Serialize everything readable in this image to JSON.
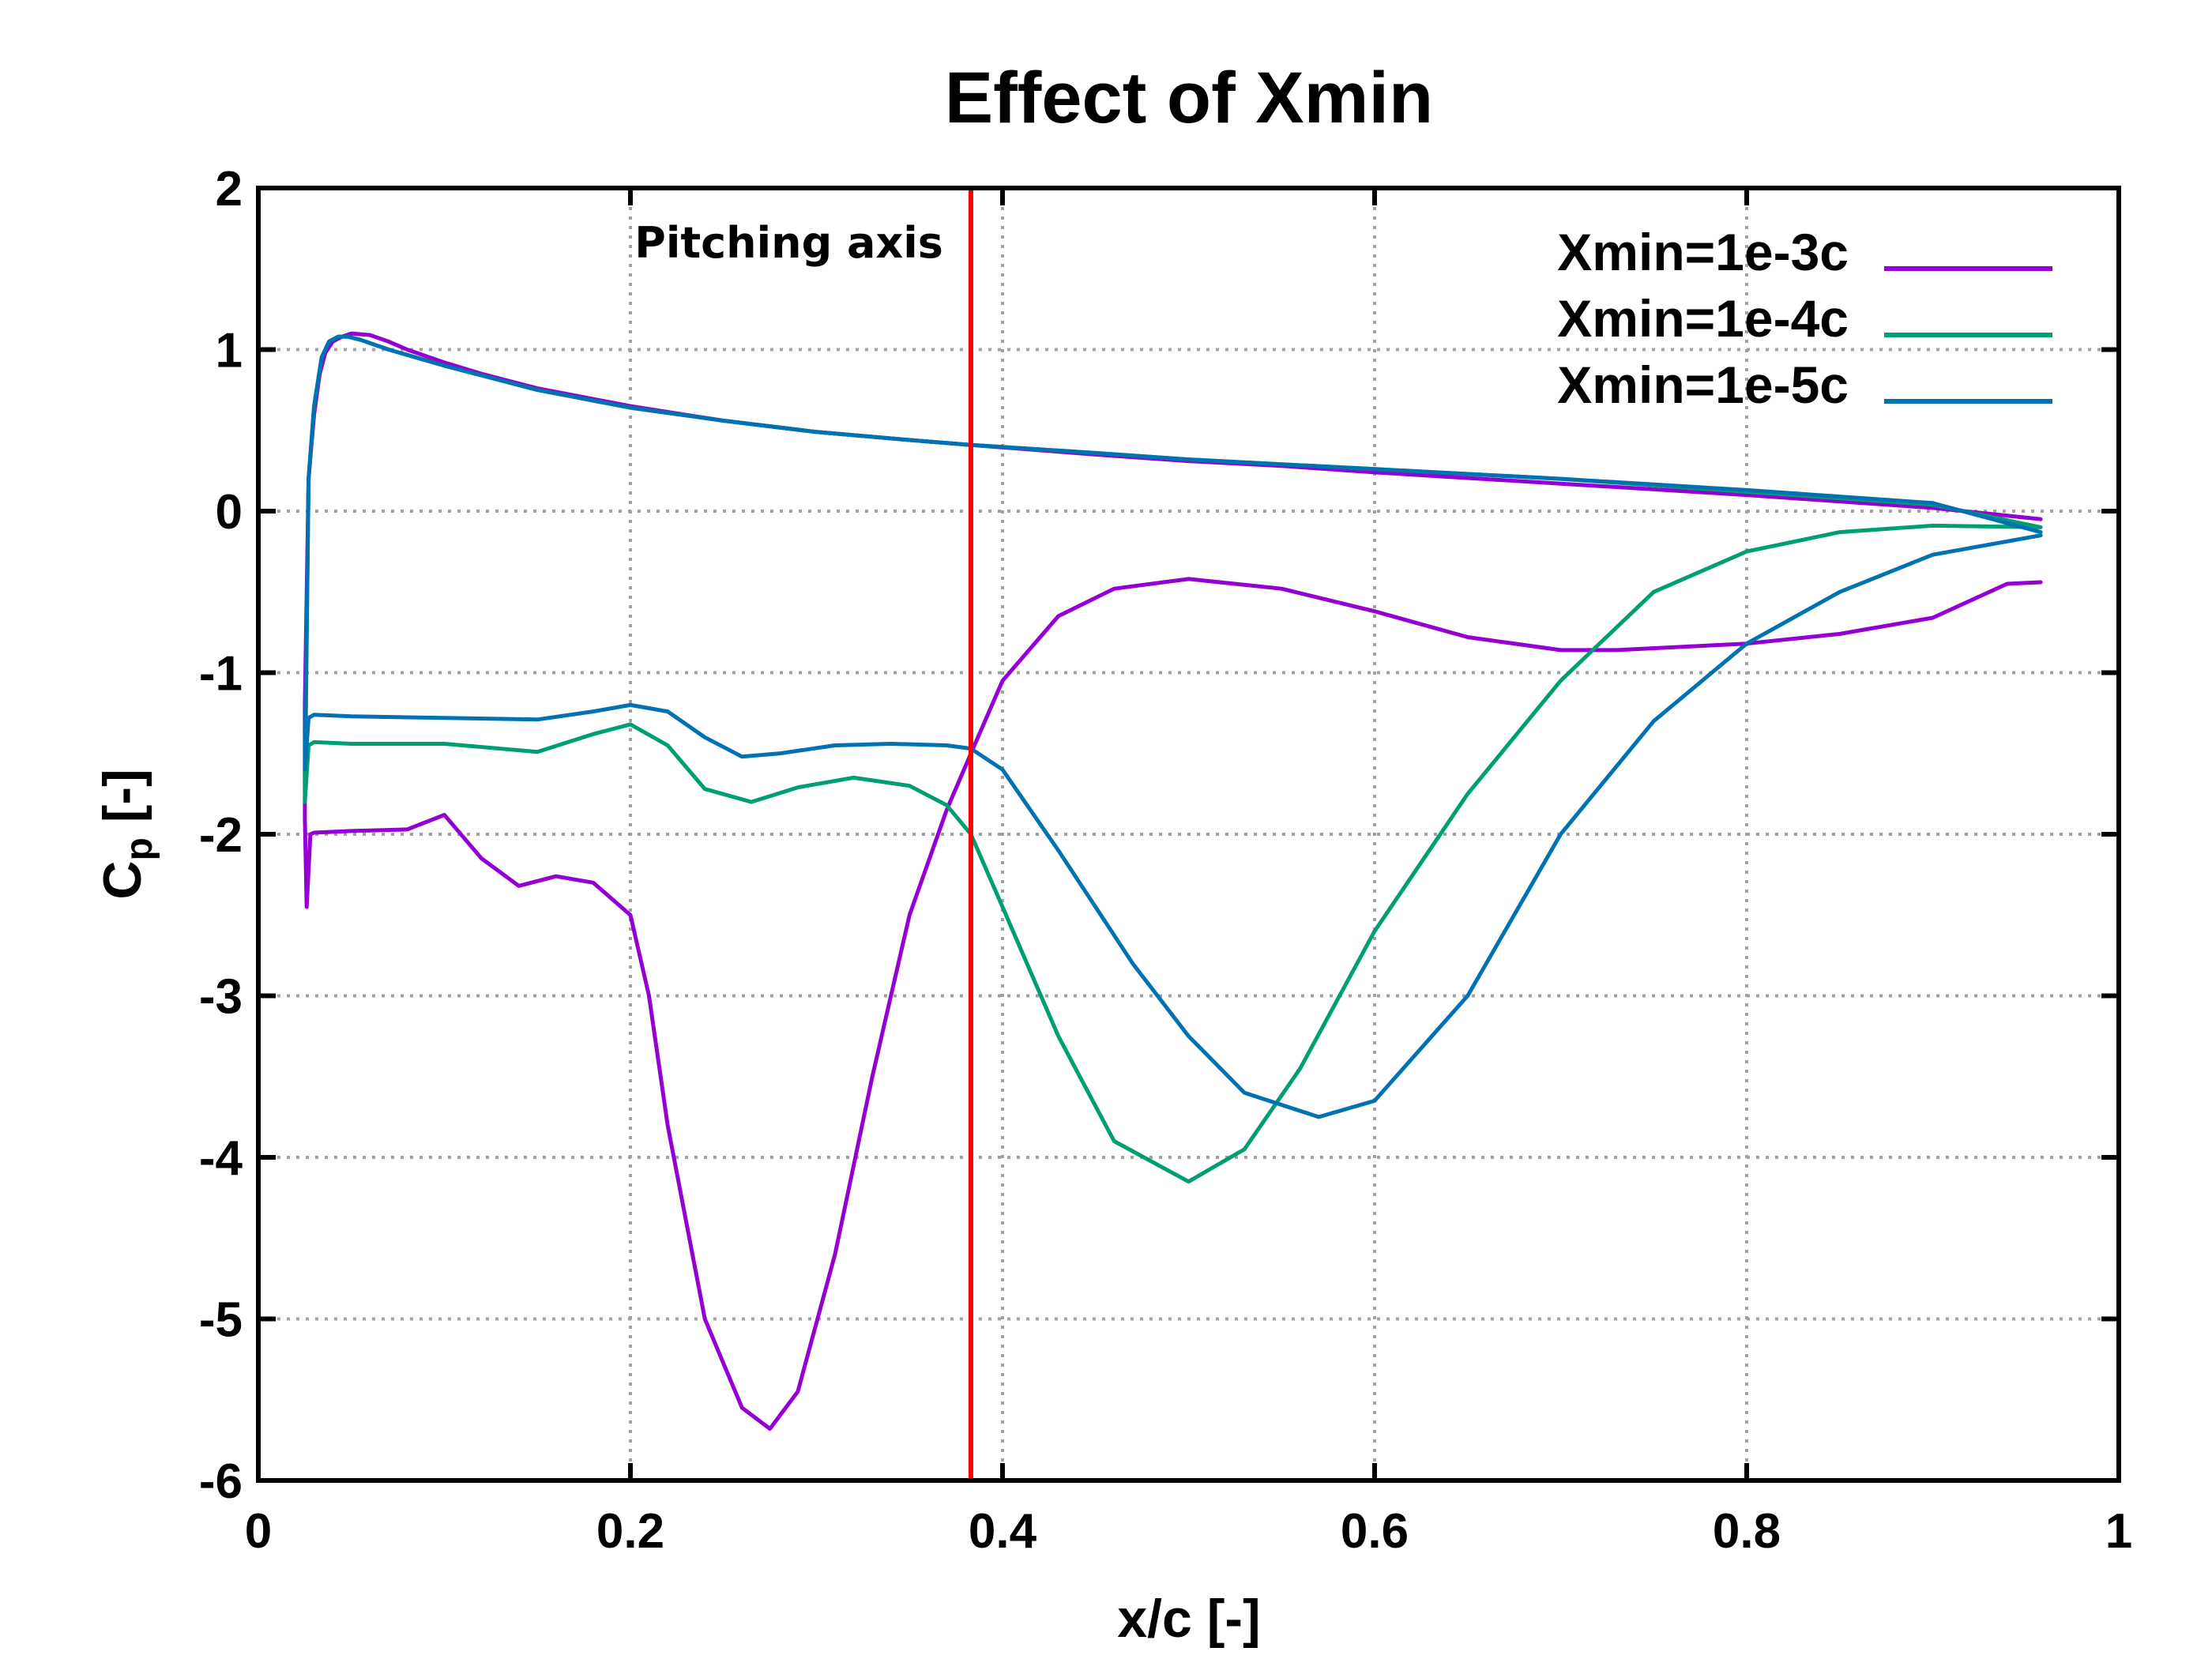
{
  "chart_data": {
    "type": "line",
    "title": "Effect of Xmin",
    "xlabel": "x/c [-]",
    "ylabel": "C",
    "ylabel_subscript": "p",
    "ylabel_suffix": " [-]",
    "xlim": [
      0,
      1
    ],
    "ylim": [
      -6,
      2
    ],
    "xticks": [
      0,
      0.2,
      0.4,
      0.6,
      0.8,
      1
    ],
    "xtick_labels": [
      "0",
      "0.2",
      "0.4",
      "0.6",
      "0.8",
      "1"
    ],
    "yticks": [
      -6,
      -5,
      -4,
      -3,
      -2,
      -1,
      0,
      1,
      2
    ],
    "ytick_labels": [
      "-6",
      "-5",
      "-4",
      "-3",
      "-2",
      "-1",
      "0",
      "1",
      "2"
    ],
    "grid": true,
    "legend_position": "top-right",
    "annotation": {
      "text": "Pitching axis",
      "x": 0.383,
      "color": "#ff0000"
    },
    "series": [
      {
        "name": "Xmin=1e-3c",
        "color": "#9400d3",
        "upper": {
          "x": [
            0.025,
            0.027,
            0.03,
            0.033,
            0.036,
            0.04,
            0.045,
            0.05,
            0.06,
            0.07,
            0.08,
            0.1,
            0.12,
            0.15,
            0.2,
            0.25,
            0.3,
            0.35,
            0.383,
            0.45,
            0.5,
            0.55,
            0.6,
            0.7,
            0.8,
            0.9,
            0.958
          ],
          "y": [
            -1.2,
            0.2,
            0.6,
            0.85,
            0.98,
            1.05,
            1.08,
            1.1,
            1.09,
            1.05,
            1.0,
            0.92,
            0.85,
            0.76,
            0.65,
            0.56,
            0.49,
            0.44,
            0.41,
            0.35,
            0.31,
            0.28,
            0.24,
            0.17,
            0.1,
            0.02,
            -0.05
          ]
        },
        "lower": {
          "x": [
            0.025,
            0.026,
            0.028,
            0.03,
            0.05,
            0.08,
            0.1,
            0.12,
            0.14,
            0.16,
            0.18,
            0.2,
            0.21,
            0.22,
            0.24,
            0.26,
            0.275,
            0.29,
            0.31,
            0.33,
            0.35,
            0.37,
            0.383,
            0.4,
            0.43,
            0.46,
            0.5,
            0.55,
            0.6,
            0.65,
            0.7,
            0.73,
            0.8,
            0.85,
            0.9,
            0.94,
            0.958
          ],
          "y": [
            -1.9,
            -2.45,
            -2.0,
            -1.99,
            -1.98,
            -1.97,
            -1.88,
            -2.15,
            -2.32,
            -2.26,
            -2.3,
            -2.5,
            -3.0,
            -3.8,
            -5.0,
            -5.55,
            -5.68,
            -5.45,
            -4.6,
            -3.5,
            -2.5,
            -1.85,
            -1.5,
            -1.05,
            -0.65,
            -0.48,
            -0.42,
            -0.48,
            -0.62,
            -0.78,
            -0.86,
            -0.86,
            -0.82,
            -0.76,
            -0.66,
            -0.45,
            -0.44
          ]
        }
      },
      {
        "name": "Xmin=1e-4c",
        "color": "#009e73",
        "upper": {
          "x": [
            0.025,
            0.027,
            0.03,
            0.034,
            0.038,
            0.043,
            0.048,
            0.055,
            0.07,
            0.1,
            0.15,
            0.2,
            0.25,
            0.3,
            0.35,
            0.383,
            0.45,
            0.5,
            0.55,
            0.6,
            0.7,
            0.8,
            0.9,
            0.958
          ],
          "y": [
            -1.8,
            0.2,
            0.65,
            0.95,
            1.05,
            1.08,
            1.08,
            1.06,
            1.0,
            0.9,
            0.75,
            0.64,
            0.56,
            0.49,
            0.44,
            0.41,
            0.36,
            0.32,
            0.29,
            0.26,
            0.2,
            0.12,
            0.04,
            -0.1
          ]
        },
        "lower": {
          "x": [
            0.025,
            0.027,
            0.03,
            0.05,
            0.1,
            0.15,
            0.18,
            0.2,
            0.22,
            0.24,
            0.265,
            0.29,
            0.32,
            0.35,
            0.37,
            0.383,
            0.4,
            0.43,
            0.46,
            0.5,
            0.53,
            0.56,
            0.6,
            0.65,
            0.7,
            0.75,
            0.8,
            0.85,
            0.9,
            0.958
          ],
          "y": [
            -1.8,
            -1.45,
            -1.43,
            -1.44,
            -1.44,
            -1.49,
            -1.38,
            -1.32,
            -1.45,
            -1.72,
            -1.8,
            -1.71,
            -1.65,
            -1.7,
            -1.82,
            -2.0,
            -2.45,
            -3.25,
            -3.9,
            -4.15,
            -3.95,
            -3.45,
            -2.6,
            -1.75,
            -1.05,
            -0.5,
            -0.25,
            -0.13,
            -0.09,
            -0.1
          ]
        }
      },
      {
        "name": "Xmin=1e-5c",
        "color": "#0072b2",
        "upper": {
          "x": [
            0.025,
            0.027,
            0.03,
            0.034,
            0.038,
            0.043,
            0.048,
            0.055,
            0.07,
            0.1,
            0.15,
            0.2,
            0.25,
            0.3,
            0.35,
            0.383,
            0.45,
            0.5,
            0.55,
            0.6,
            0.7,
            0.8,
            0.9,
            0.958
          ],
          "y": [
            -1.6,
            0.2,
            0.65,
            0.95,
            1.05,
            1.08,
            1.08,
            1.06,
            1.0,
            0.9,
            0.75,
            0.64,
            0.56,
            0.49,
            0.44,
            0.41,
            0.36,
            0.32,
            0.29,
            0.26,
            0.2,
            0.13,
            0.05,
            -0.13
          ]
        },
        "lower": {
          "x": [
            0.025,
            0.027,
            0.03,
            0.05,
            0.1,
            0.15,
            0.18,
            0.2,
            0.22,
            0.24,
            0.26,
            0.28,
            0.31,
            0.34,
            0.37,
            0.383,
            0.4,
            0.43,
            0.47,
            0.5,
            0.53,
            0.57,
            0.6,
            0.65,
            0.7,
            0.75,
            0.8,
            0.85,
            0.9,
            0.958
          ],
          "y": [
            -1.6,
            -1.28,
            -1.26,
            -1.27,
            -1.28,
            -1.29,
            -1.24,
            -1.2,
            -1.24,
            -1.4,
            -1.52,
            -1.5,
            -1.45,
            -1.44,
            -1.45,
            -1.47,
            -1.6,
            -2.1,
            -2.8,
            -3.25,
            -3.6,
            -3.75,
            -3.65,
            -3.0,
            -2.0,
            -1.3,
            -0.82,
            -0.5,
            -0.27,
            -0.15
          ]
        }
      }
    ]
  }
}
